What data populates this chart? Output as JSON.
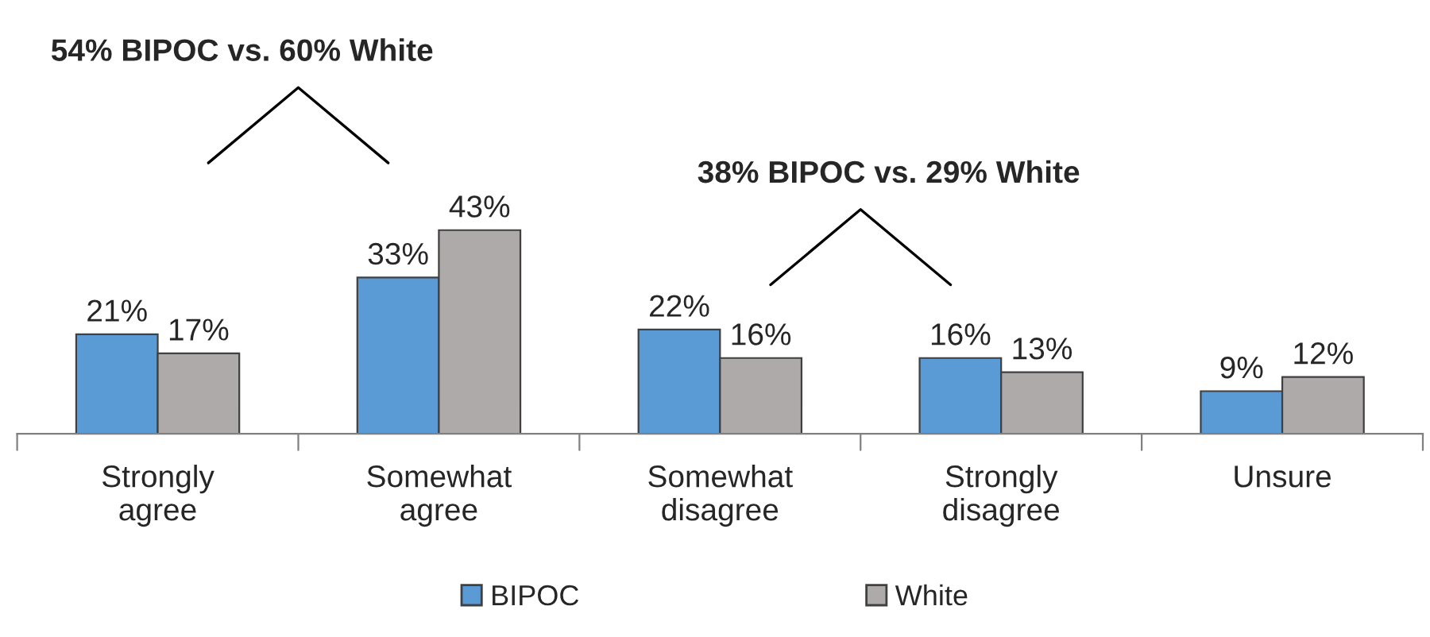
{
  "chart_data": {
    "type": "bar",
    "categories": [
      "Strongly agree",
      "Somewhat agree",
      "Somewhat disagree",
      "Strongly disagree",
      "Unsure"
    ],
    "series": [
      {
        "name": "BIPOC",
        "color": "#5b9bd5",
        "values": [
          21,
          33,
          22,
          16,
          9
        ],
        "value_labels": [
          "21%",
          "33%",
          "22%",
          "16%",
          "9%"
        ]
      },
      {
        "name": "White",
        "color": "#aeaaaa",
        "values": [
          17,
          43,
          16,
          13,
          12
        ],
        "value_labels": [
          "17%",
          "43%",
          "16%",
          "13%",
          "12%"
        ]
      }
    ],
    "annotations": [
      "54% BIPOC vs. 60% White",
      "38% BIPOC vs. 29% White"
    ],
    "legend": "bottom",
    "grid": false
  }
}
